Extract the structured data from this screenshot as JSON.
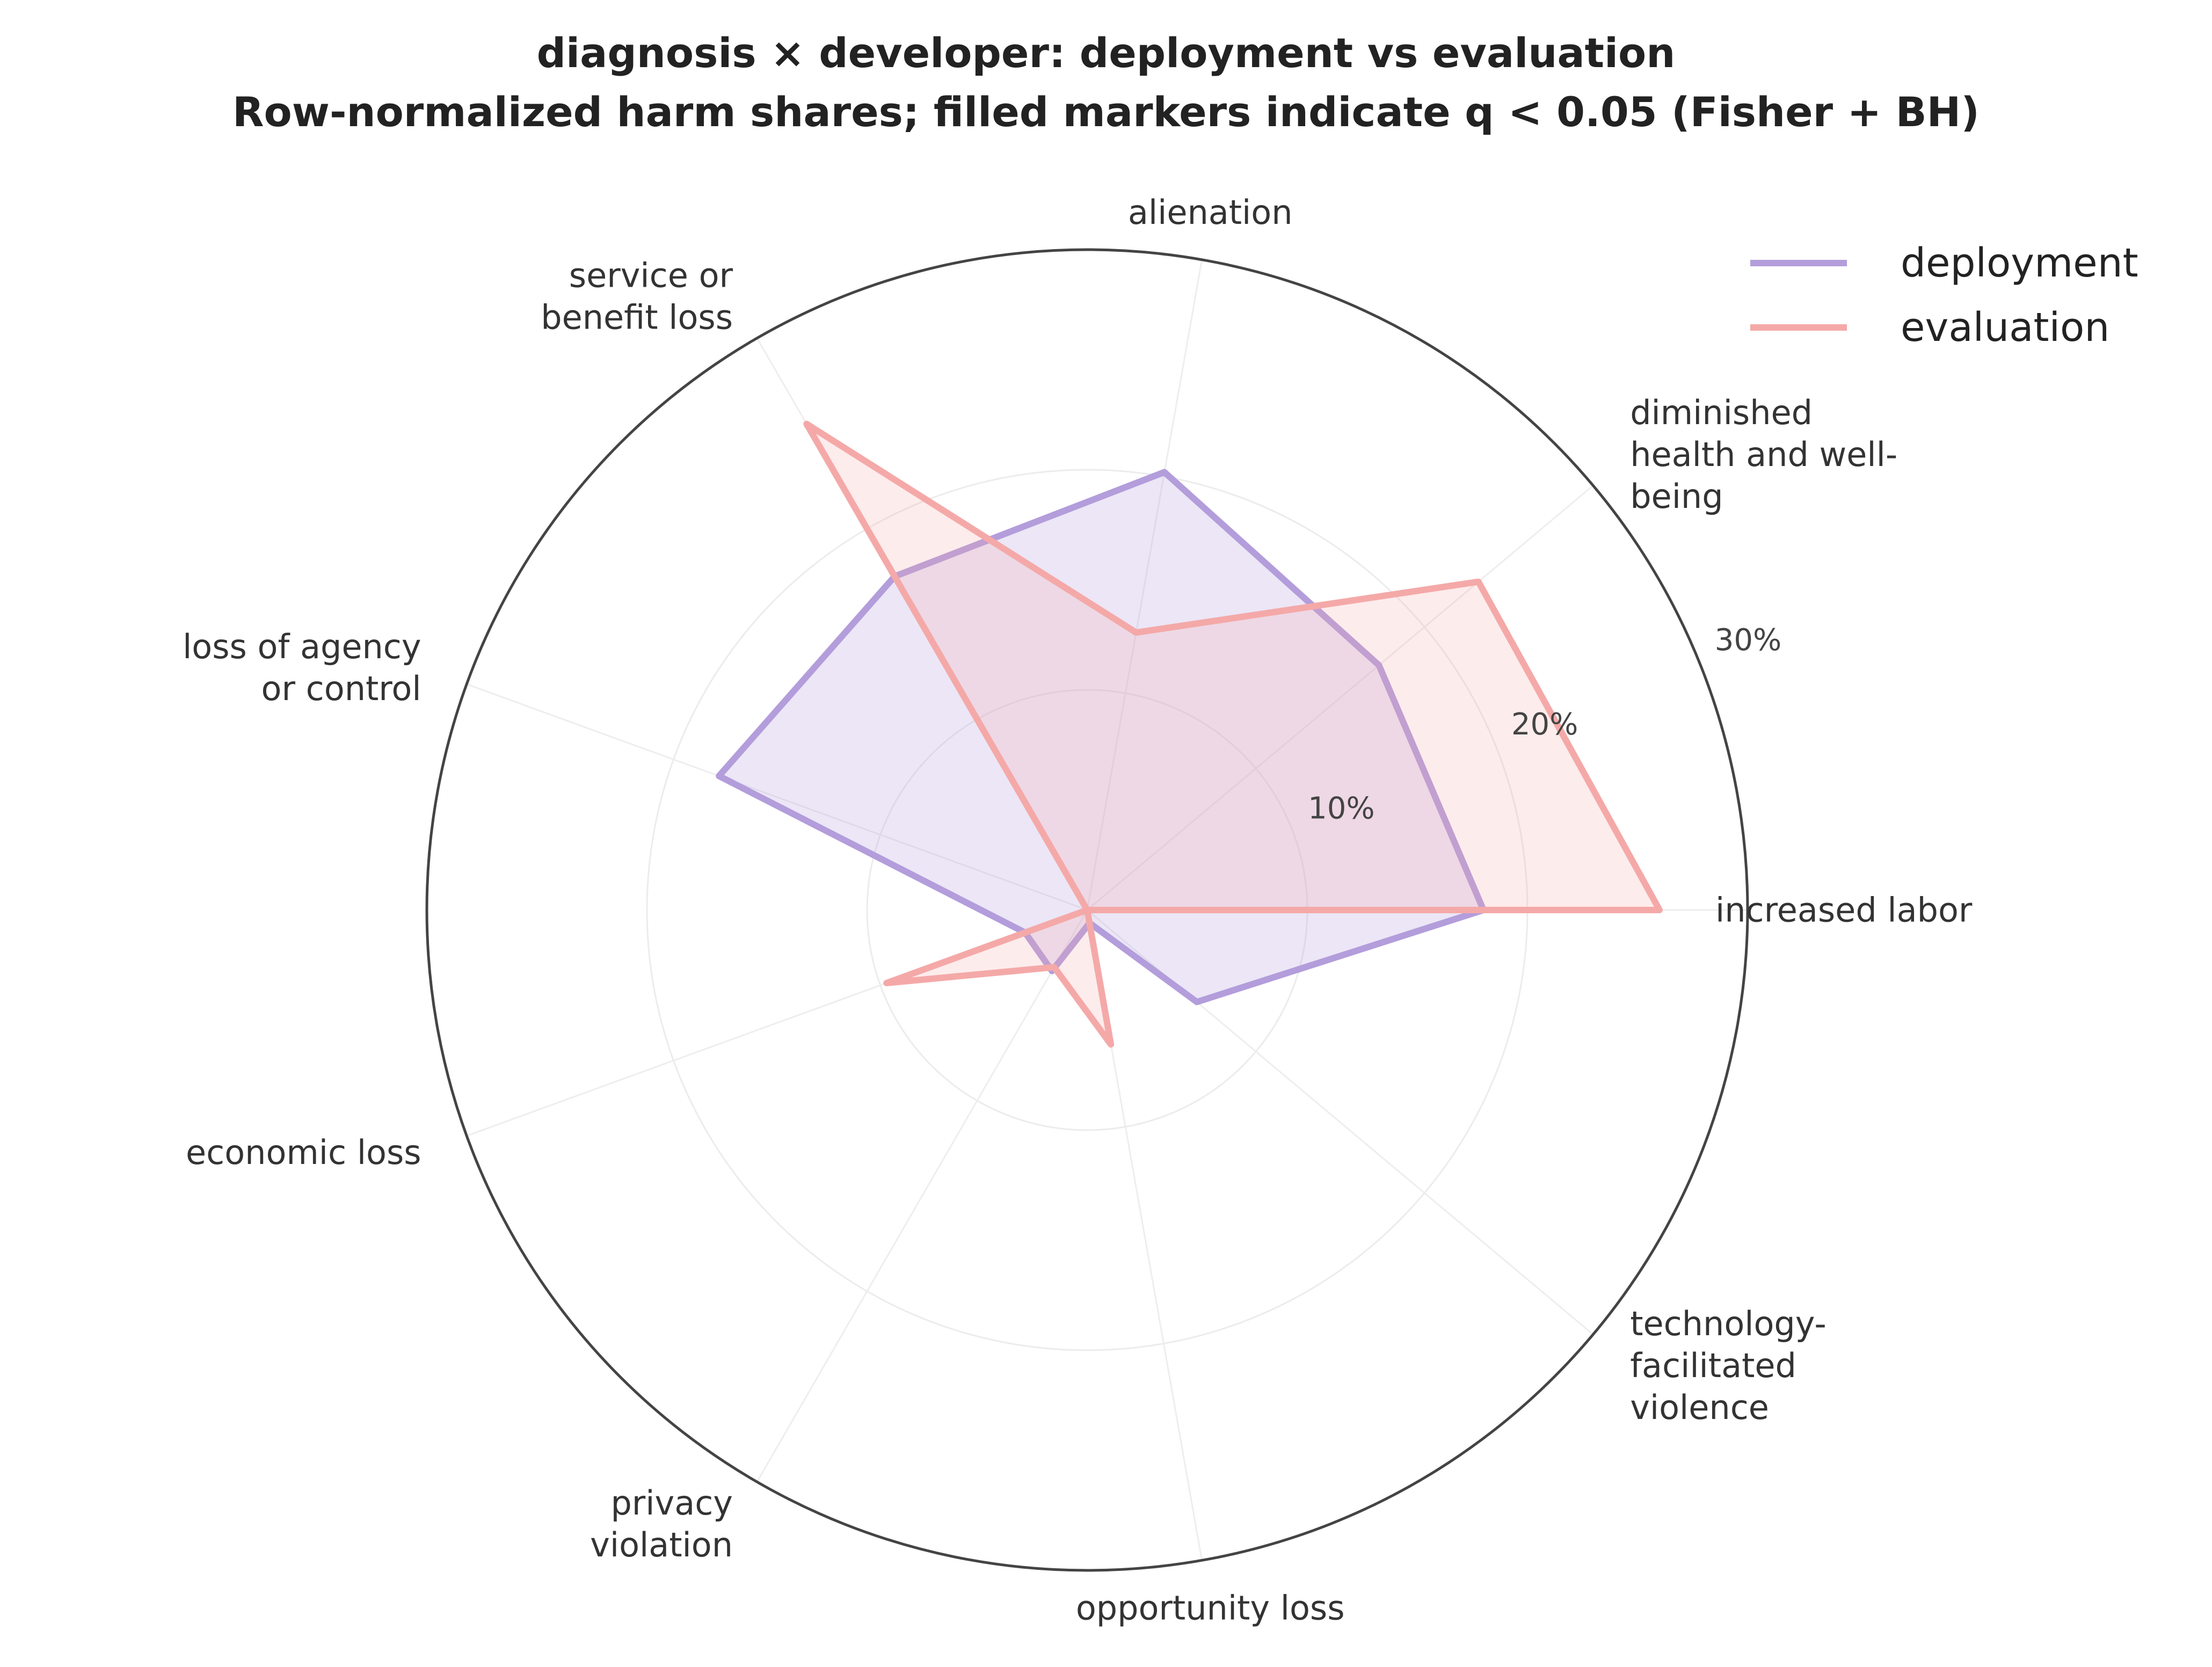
{
  "chart_data": {
    "type": "radar",
    "title": "diagnosis × developer: deployment vs evaluation",
    "subtitle": "Row-normalized harm shares; filled markers indicate q < 0.05 (Fisher + BH)",
    "categories": [
      "increased labor",
      "diminished\nhealth and well-\nbeing",
      "alienation",
      "service or\nbenefit loss",
      "loss of agency\nor control",
      "economic loss",
      "privacy\nviolation",
      "opportunity loss",
      "technology-\nfacilitated\nviolence"
    ],
    "series": [
      {
        "name": "deployment",
        "color": "#b39ddb",
        "values": [
          18.0,
          17.3,
          20.2,
          17.5,
          17.8,
          3.0,
          3.2,
          0.6,
          6.5
        ]
      },
      {
        "name": "evaluation",
        "color": "#f4a9a8",
        "values": [
          26.0,
          23.2,
          12.8,
          25.5,
          0.0,
          9.7,
          3.0,
          6.2,
          0.0
        ]
      }
    ],
    "rlim": [
      0,
      30
    ],
    "rticks": [
      10,
      20,
      30
    ],
    "rtick_labels": [
      "10%",
      "20%",
      "30%"
    ],
    "legend_position": "top-right",
    "grid": true
  }
}
